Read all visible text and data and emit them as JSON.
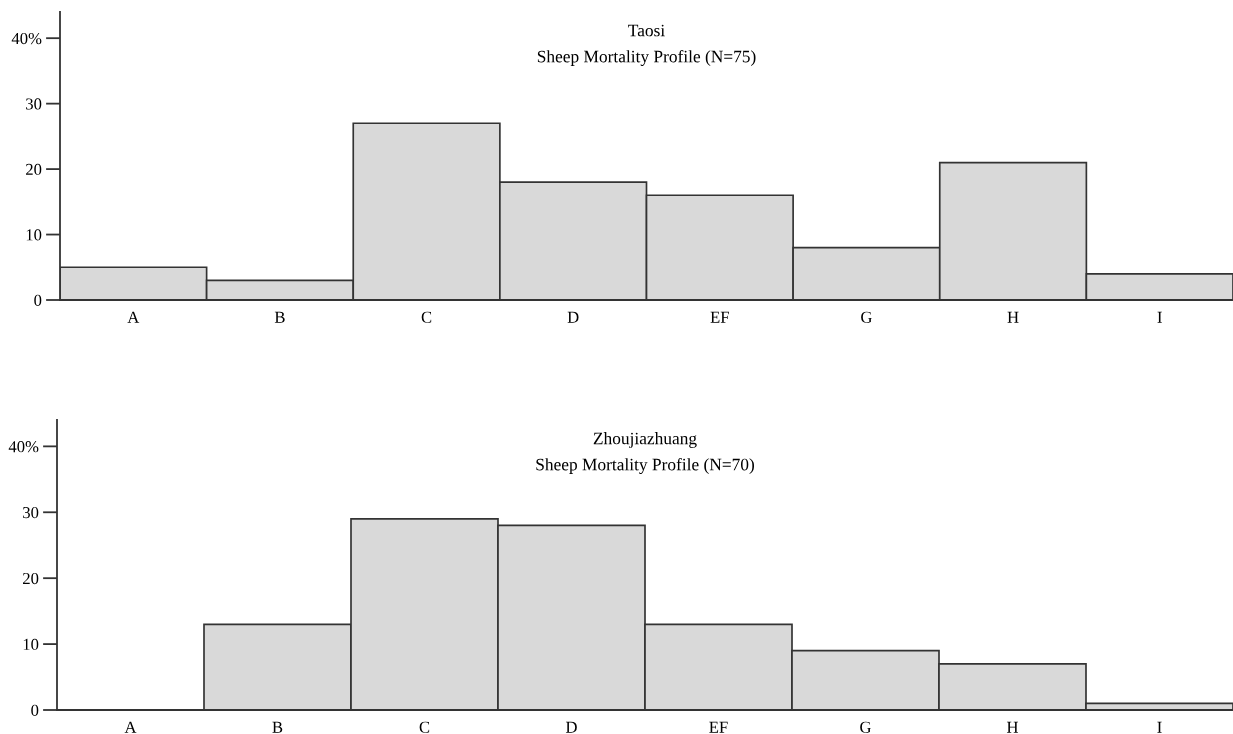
{
  "chart_data": [
    {
      "type": "bar",
      "title": "Taosi",
      "subtitle": "Sheep Mortality Profile (N=75)",
      "categories": [
        "A",
        "B",
        "C",
        "D",
        "EF",
        "G",
        "H",
        "I"
      ],
      "values": [
        5,
        3,
        27,
        18,
        16,
        8,
        21,
        4
      ],
      "color": "#d9d9d9",
      "ylim": [
        0,
        44
      ],
      "yticks": [
        0,
        10,
        20,
        30,
        {
          "value": 40,
          "label": "40%"
        }
      ]
    },
    {
      "type": "bar",
      "title": "Zhoujiazhuang",
      "subtitle": "Sheep Mortality Profile (N=70)",
      "categories": [
        "A",
        "B",
        "C",
        "D",
        "EF",
        "G",
        "H",
        "I"
      ],
      "values": [
        0,
        13,
        29,
        28,
        13,
        9,
        7,
        1
      ],
      "color": "#d9d9d9",
      "ylim": [
        0,
        44
      ],
      "yticks": [
        0,
        10,
        20,
        30,
        {
          "value": 40,
          "label": "40%"
        }
      ]
    }
  ]
}
